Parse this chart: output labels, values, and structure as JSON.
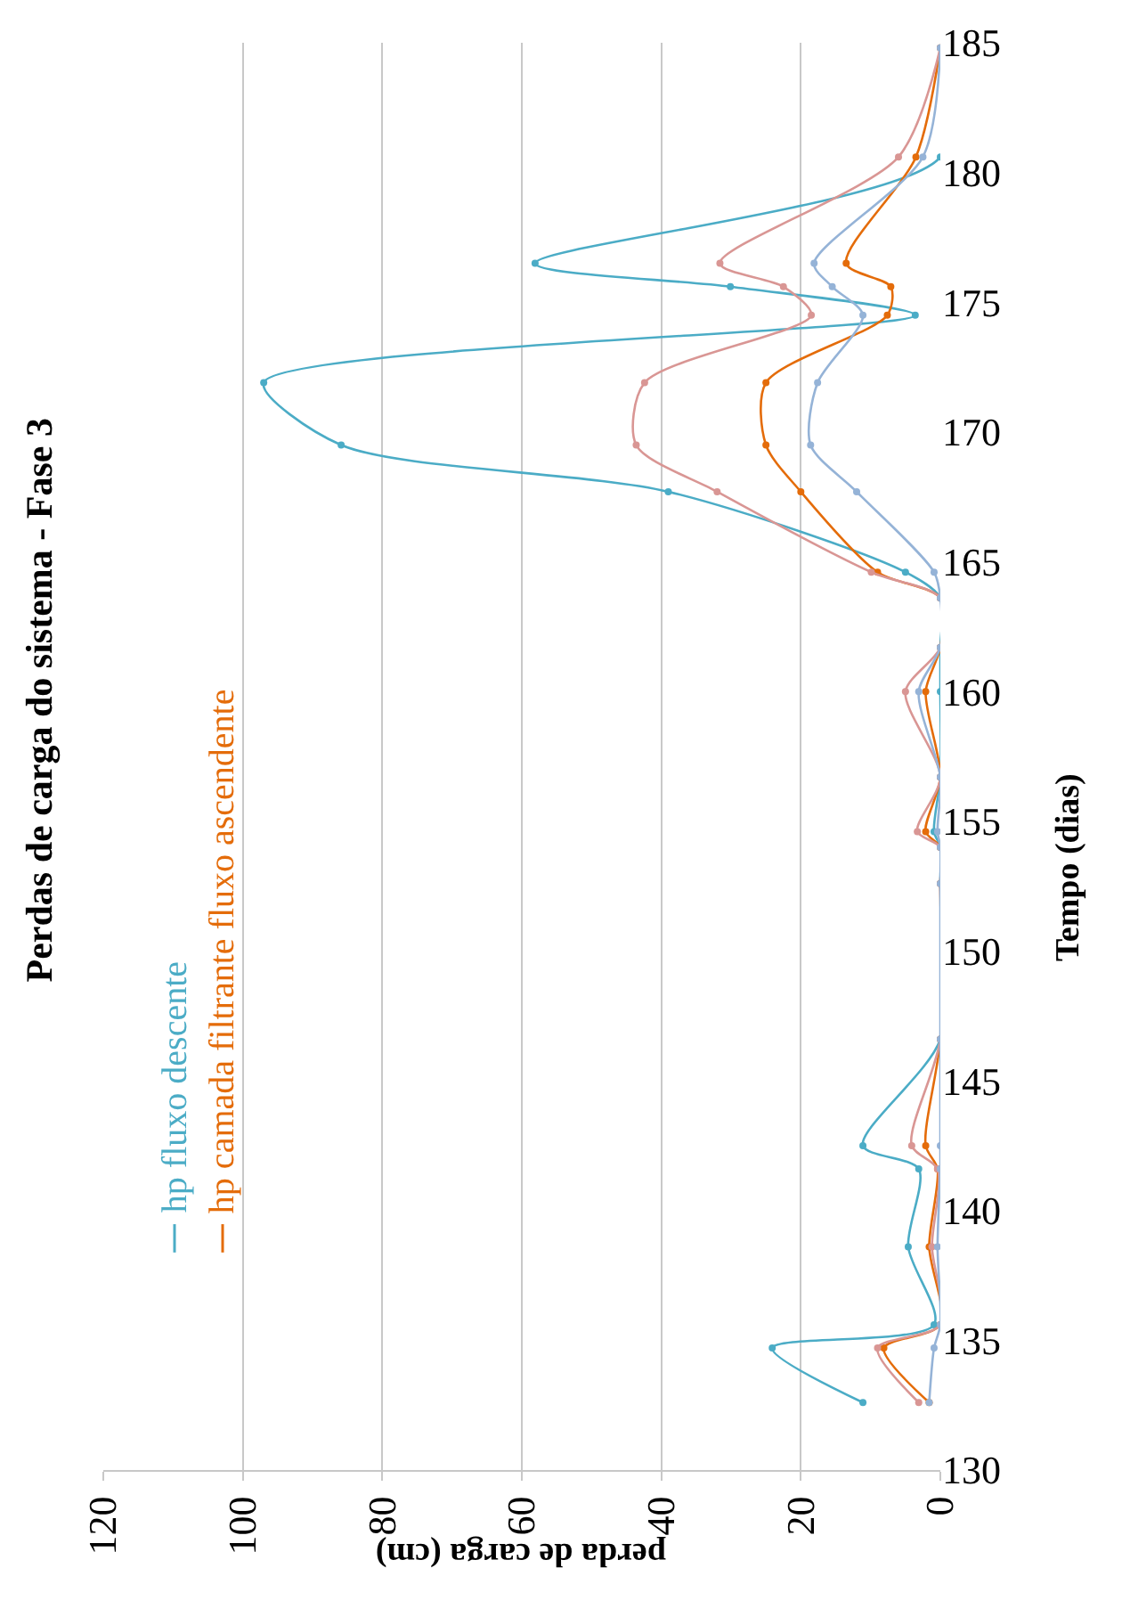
{
  "chart_data": {
    "type": "line",
    "orientation": "horizontal",
    "title": "Perdas de carga do sistema - Fase 3",
    "xlabel": "perda de carga (cm)",
    "ylabel": "Tempo (dias)",
    "x": [
      132.6,
      134.7,
      135.6,
      138.6,
      141.6,
      142.5,
      146.6,
      152.6,
      154.0,
      154.6,
      156.7,
      160.0,
      161.7,
      163.6,
      164.6,
      167.7,
      169.5,
      171.9,
      174.5,
      175.6,
      176.5,
      180.6,
      184.8
    ],
    "series": [
      {
        "name": "hp fluxo descente",
        "color": "#4bacc6",
        "values": [
          11.1,
          24.1,
          0.9,
          4.6,
          3.1,
          11.1,
          0,
          0,
          0,
          0.9,
          0,
          0,
          0,
          0,
          5.0,
          39.0,
          85.9,
          97.0,
          3.6,
          30.1,
          58.1,
          0,
          0
        ]
      },
      {
        "name": "hp camada filtrante fluxo ascendente",
        "color": "#e46c0a",
        "values": [
          1.6,
          8.1,
          0,
          1.6,
          0.4,
          2.1,
          0,
          0,
          0,
          2.1,
          0,
          2.1,
          0,
          0,
          9.0,
          20.0,
          25.0,
          25.0,
          7.6,
          7.1,
          13.5,
          3.5,
          0
        ]
      },
      {
        "color": "#d99694",
        "values": [
          3.1,
          9.0,
          0,
          1.2,
          0.4,
          4.1,
          0,
          0,
          0,
          3.3,
          0,
          5.0,
          0,
          0,
          9.9,
          32.0,
          43.6,
          42.4,
          18.5,
          22.5,
          31.6,
          6.0,
          0
        ]
      },
      {
        "color": "#95b3d7",
        "values": [
          1.6,
          0.9,
          0,
          0.4,
          0,
          0,
          0,
          0,
          0,
          0.4,
          0,
          3.1,
          0,
          0,
          0.9,
          12.0,
          18.6,
          17.6,
          11.1,
          15.5,
          18.1,
          2.5,
          0
        ]
      }
    ],
    "xlim": [
      120,
      0
    ],
    "xticks": [
      120,
      100,
      80,
      60,
      40,
      20,
      0
    ],
    "ylim": [
      130,
      185
    ],
    "yticks": [
      130,
      135,
      140,
      145,
      150,
      155,
      160,
      165,
      170,
      175,
      180,
      185
    ],
    "grid": "x",
    "legend": "bottom left",
    "marker": "circle",
    "line_style": "solid"
  }
}
